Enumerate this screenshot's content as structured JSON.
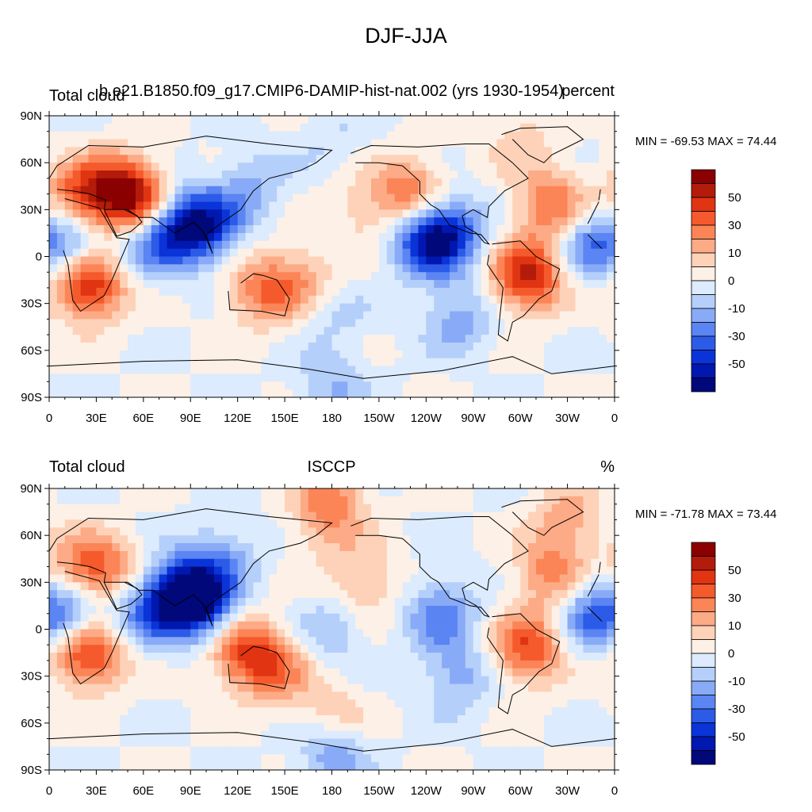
{
  "figure": {
    "title": "DJF-JJA"
  },
  "panels": [
    {
      "left_title": "Total cloud",
      "center_title": "b.e21.B1850.f09_g17.CMIP6-DAMIP-hist-nat.002 (yrs 1930-1954)",
      "right_title": "percent",
      "min_max": "MIN = -69.53 MAX =  74.44"
    },
    {
      "left_title": "Total cloud",
      "center_title": "ISCCP",
      "right_title": "%",
      "min_max": "MIN = -71.78 MAX =  73.44"
    }
  ],
  "chart_data": [
    {
      "type": "heatmap",
      "title": "Total cloud  b.e21.B1850.f09_g17.CMIP6-DAMIP-hist-nat.002 (yrs 1930-1954)  percent",
      "field": "Total cloud DJF-JJA difference",
      "units": "percent",
      "min": -69.53,
      "max": 74.44,
      "xlim": [
        0,
        360
      ],
      "ylim": [
        -90,
        90
      ],
      "x_ticks": [
        "0",
        "30E",
        "60E",
        "90E",
        "120E",
        "150E",
        "180",
        "150W",
        "120W",
        "90W",
        "60W",
        "30W",
        "0"
      ],
      "y_ticks": [
        "90N",
        "60N",
        "30N",
        "0",
        "30S",
        "60S",
        "90S"
      ],
      "features": [
        {
          "lon": 20,
          "lat": 38,
          "v": 45
        },
        {
          "lon": 45,
          "lat": 42,
          "v": 55
        },
        {
          "lon": 60,
          "lat": 33,
          "v": 40
        },
        {
          "lon": 80,
          "lat": 20,
          "v": -40
        },
        {
          "lon": 100,
          "lat": 20,
          "v": -55
        },
        {
          "lon": 65,
          "lat": 8,
          "v": -30
        },
        {
          "lon": 15,
          "lat": 8,
          "v": -35
        },
        {
          "lon": 25,
          "lat": -18,
          "v": 65
        },
        {
          "lon": 135,
          "lat": -22,
          "v": 35
        },
        {
          "lon": 160,
          "lat": -15,
          "v": 25
        },
        {
          "lon": 240,
          "lat": 10,
          "v": -50
        },
        {
          "lon": 255,
          "lat": 15,
          "v": -45
        },
        {
          "lon": 230,
          "lat": 40,
          "v": 40
        },
        {
          "lon": 305,
          "lat": -12,
          "v": 65
        },
        {
          "lon": 320,
          "lat": 33,
          "v": 40
        },
        {
          "lon": 345,
          "lat": 8,
          "v": -35
        },
        {
          "lon": 260,
          "lat": -40,
          "v": -25
        },
        {
          "lon": 180,
          "lat": -40,
          "v": -15
        },
        {
          "lon": 200,
          "lat": 30,
          "v": 15
        },
        {
          "lon": 180,
          "lat": 75,
          "v": -10
        },
        {
          "lon": 300,
          "lat": 75,
          "v": 15
        },
        {
          "lon": 180,
          "lat": -65,
          "v": 8
        },
        {
          "lon": 180,
          "lat": -80,
          "v": -25
        },
        {
          "lon": 130,
          "lat": 45,
          "v": -20
        }
      ]
    },
    {
      "type": "heatmap",
      "title": "Total cloud  ISCCP  %",
      "field": "Total cloud DJF-JJA difference",
      "units": "%",
      "min": -71.78,
      "max": 73.44,
      "xlim": [
        0,
        360
      ],
      "ylim": [
        -90,
        90
      ],
      "x_ticks": [
        "0",
        "30E",
        "60E",
        "90E",
        "120E",
        "150E",
        "180",
        "150W",
        "120W",
        "90W",
        "60W",
        "30W",
        "0"
      ],
      "y_ticks": [
        "90N",
        "60N",
        "30N",
        "0",
        "30S",
        "60S",
        "90S"
      ],
      "features": [
        {
          "lon": 20,
          "lat": 38,
          "v": 35
        },
        {
          "lon": 40,
          "lat": 35,
          "v": 30
        },
        {
          "lon": 85,
          "lat": 22,
          "v": -60
        },
        {
          "lon": 95,
          "lat": 18,
          "v": -55
        },
        {
          "lon": 110,
          "lat": 45,
          "v": -25
        },
        {
          "lon": 15,
          "lat": 10,
          "v": -40
        },
        {
          "lon": 60,
          "lat": 12,
          "v": -35
        },
        {
          "lon": 25,
          "lat": -15,
          "v": 60
        },
        {
          "lon": 125,
          "lat": -15,
          "v": 45
        },
        {
          "lon": 145,
          "lat": -25,
          "v": 30
        },
        {
          "lon": 175,
          "lat": 65,
          "v": 15
        },
        {
          "lon": 200,
          "lat": 30,
          "v": 25
        },
        {
          "lon": 250,
          "lat": 10,
          "v": -35
        },
        {
          "lon": 305,
          "lat": -12,
          "v": 50
        },
        {
          "lon": 320,
          "lat": 35,
          "v": 35
        },
        {
          "lon": 345,
          "lat": 10,
          "v": -40
        },
        {
          "lon": 330,
          "lat": 70,
          "v": 25
        },
        {
          "lon": 260,
          "lat": -30,
          "v": -25
        },
        {
          "lon": 180,
          "lat": 0,
          "v": -20
        },
        {
          "lon": 180,
          "lat": -55,
          "v": 20
        },
        {
          "lon": 180,
          "lat": -80,
          "v": -30
        },
        {
          "lon": 180,
          "lat": 85,
          "v": 30
        }
      ]
    }
  ],
  "colorbar": {
    "labels": [
      "50",
      "30",
      "10",
      "0",
      "-10",
      "-30",
      "-50"
    ],
    "colors": [
      "#8b0000",
      "#b31c0a",
      "#e03412",
      "#f55a2c",
      "#fb8557",
      "#fcab86",
      "#fdd2b8",
      "#fdf0e6",
      "#dcebfd",
      "#b5cffb",
      "#89abf7",
      "#5a85f2",
      "#2c5be8",
      "#0a34d8",
      "#0018b0",
      "#00087a"
    ],
    "levels": [
      70,
      60,
      50,
      40,
      30,
      20,
      10,
      0,
      -10,
      -20,
      -30,
      -40,
      -50,
      -60,
      -70
    ]
  }
}
